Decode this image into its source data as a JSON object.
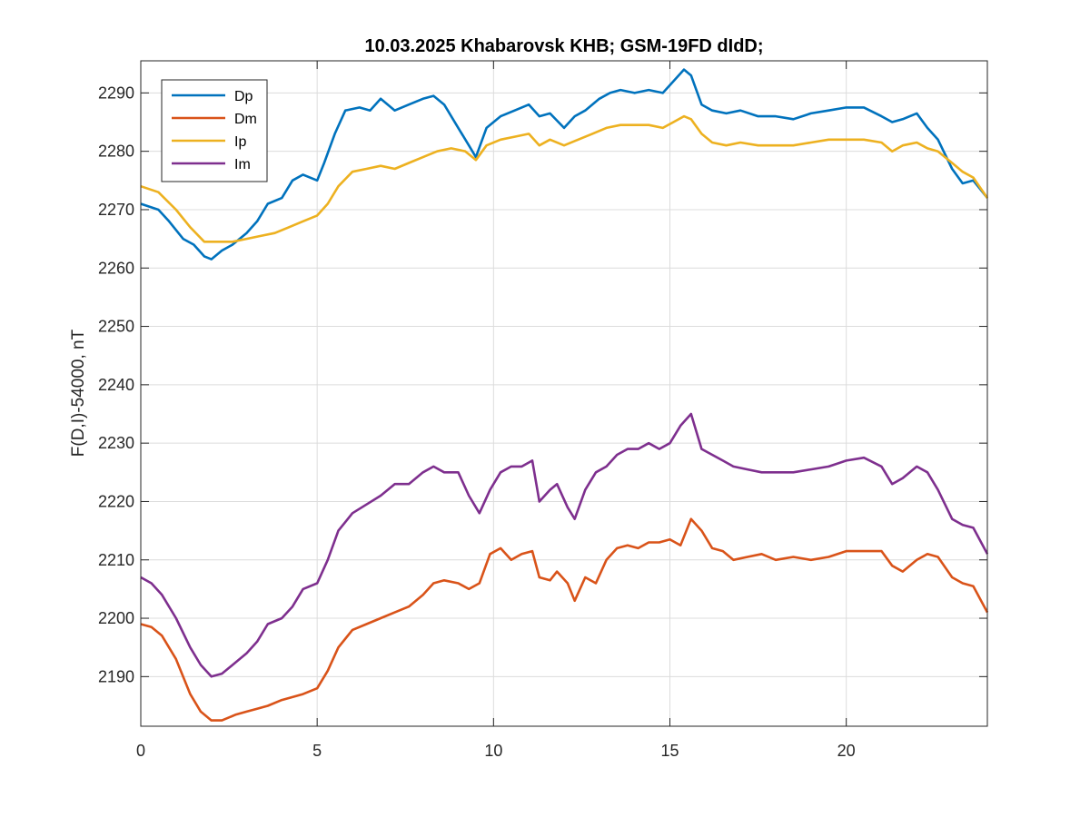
{
  "chart_data": {
    "type": "line",
    "title": "10.03.2025  Khabarovsk KHB; GSM-19FD dIdD;",
    "xlabel": "",
    "ylabel": "F(D,I)-54000, nT",
    "xlim": [
      0,
      24
    ],
    "ylim": [
      2181.5,
      2295.5
    ],
    "x_ticks": [
      0,
      5,
      10,
      15,
      20
    ],
    "y_ticks": [
      2190,
      2200,
      2210,
      2220,
      2230,
      2240,
      2250,
      2260,
      2270,
      2280,
      2290
    ],
    "grid": true,
    "legend_position": "top-left",
    "series": [
      {
        "name": "Dp",
        "color": "#0072BD",
        "x": [
          0,
          0.5,
          0.8,
          1.2,
          1.5,
          1.8,
          2.0,
          2.3,
          2.6,
          3.0,
          3.3,
          3.6,
          4.0,
          4.3,
          4.6,
          5.0,
          5.2,
          5.5,
          5.8,
          6.2,
          6.5,
          6.8,
          7.2,
          7.6,
          8.0,
          8.3,
          8.6,
          9.0,
          9.3,
          9.5,
          9.8,
          10.2,
          10.6,
          11.0,
          11.3,
          11.6,
          12.0,
          12.3,
          12.6,
          13.0,
          13.3,
          13.6,
          14.0,
          14.4,
          14.8,
          15.1,
          15.4,
          15.6,
          15.9,
          16.2,
          16.6,
          17.0,
          17.5,
          18.0,
          18.5,
          19.0,
          19.5,
          20.0,
          20.5,
          21.0,
          21.3,
          21.6,
          22.0,
          22.3,
          22.6,
          23.0,
          23.3,
          23.6,
          24.0
        ],
        "values": [
          2271,
          2270,
          2268,
          2265,
          2264,
          2262,
          2261.5,
          2263,
          2264,
          2266,
          2268,
          2271,
          2272,
          2275,
          2276,
          2275,
          2278,
          2283,
          2287,
          2287.5,
          2287,
          2289,
          2287,
          2288,
          2289,
          2289.5,
          2288,
          2284,
          2281,
          2279,
          2284,
          2286,
          2287,
          2288,
          2286,
          2286.5,
          2284,
          2286,
          2287,
          2289,
          2290,
          2290.5,
          2290,
          2290.5,
          2290,
          2292,
          2294,
          2293,
          2288,
          2287,
          2286.5,
          2287,
          2286,
          2286,
          2285.5,
          2286.5,
          2287,
          2287.5,
          2287.5,
          2286,
          2285,
          2285.5,
          2286.5,
          2284,
          2282,
          2277,
          2274.5,
          2275,
          2272
        ]
      },
      {
        "name": "Dm",
        "color": "#D95319",
        "x": [
          0,
          0.3,
          0.6,
          1.0,
          1.4,
          1.7,
          2.0,
          2.3,
          2.7,
          3.0,
          3.3,
          3.6,
          4.0,
          4.3,
          4.6,
          5.0,
          5.3,
          5.6,
          6.0,
          6.4,
          6.8,
          7.2,
          7.6,
          8.0,
          8.3,
          8.6,
          9.0,
          9.3,
          9.6,
          9.9,
          10.2,
          10.5,
          10.8,
          11.1,
          11.3,
          11.6,
          11.8,
          12.1,
          12.3,
          12.6,
          12.9,
          13.2,
          13.5,
          13.8,
          14.1,
          14.4,
          14.7,
          15.0,
          15.3,
          15.6,
          15.9,
          16.2,
          16.5,
          16.8,
          17.2,
          17.6,
          18.0,
          18.5,
          19.0,
          19.5,
          20.0,
          20.5,
          21.0,
          21.3,
          21.6,
          22.0,
          22.3,
          22.6,
          23.0,
          23.3,
          23.6,
          24.0
        ],
        "values": [
          2199,
          2198.5,
          2197,
          2193,
          2187,
          2184,
          2182.5,
          2182.5,
          2183.5,
          2184,
          2184.5,
          2185,
          2186,
          2186.5,
          2187,
          2188,
          2191,
          2195,
          2198,
          2199,
          2200,
          2201,
          2202,
          2204,
          2206,
          2206.5,
          2206,
          2205,
          2206,
          2211,
          2212,
          2210,
          2211,
          2211.5,
          2207,
          2206.5,
          2208,
          2206,
          2203,
          2207,
          2206,
          2210,
          2212,
          2212.5,
          2212,
          2213,
          2213,
          2213.5,
          2212.5,
          2217,
          2215,
          2212,
          2211.5,
          2210,
          2210.5,
          2211,
          2210,
          2210.5,
          2210,
          2210.5,
          2211.5,
          2211.5,
          2211.5,
          2209,
          2208,
          2210,
          2211,
          2210.5,
          2207,
          2206,
          2205.5,
          2201
        ]
      },
      {
        "name": "Ip",
        "color": "#EDB120",
        "x": [
          0,
          0.5,
          1.0,
          1.4,
          1.8,
          2.2,
          2.6,
          3.0,
          3.4,
          3.8,
          4.2,
          4.6,
          5.0,
          5.3,
          5.6,
          6.0,
          6.4,
          6.8,
          7.2,
          7.6,
          8.0,
          8.4,
          8.8,
          9.2,
          9.5,
          9.8,
          10.2,
          10.6,
          11.0,
          11.3,
          11.6,
          12.0,
          12.4,
          12.8,
          13.2,
          13.6,
          14.0,
          14.4,
          14.8,
          15.1,
          15.4,
          15.6,
          15.9,
          16.2,
          16.6,
          17.0,
          17.5,
          18.0,
          18.5,
          19.0,
          19.5,
          20.0,
          20.5,
          21.0,
          21.3,
          21.6,
          22.0,
          22.3,
          22.6,
          23.0,
          23.3,
          23.6,
          24.0
        ],
        "values": [
          2274,
          2273,
          2270,
          2267,
          2264.5,
          2264.5,
          2264.5,
          2265,
          2265.5,
          2266,
          2267,
          2268,
          2269,
          2271,
          2274,
          2276.5,
          2277,
          2277.5,
          2277,
          2278,
          2279,
          2280,
          2280.5,
          2280,
          2278.5,
          2281,
          2282,
          2282.5,
          2283,
          2281,
          2282,
          2281,
          2282,
          2283,
          2284,
          2284.5,
          2284.5,
          2284.5,
          2284,
          2285,
          2286,
          2285.5,
          2283,
          2281.5,
          2281,
          2281.5,
          2281,
          2281,
          2281,
          2281.5,
          2282,
          2282,
          2282,
          2281.5,
          2280,
          2281,
          2281.5,
          2280.5,
          2280,
          2278,
          2276.5,
          2275.5,
          2272
        ]
      },
      {
        "name": "Im",
        "color": "#7E2F8E",
        "x": [
          0,
          0.3,
          0.6,
          1.0,
          1.4,
          1.7,
          2.0,
          2.3,
          2.7,
          3.0,
          3.3,
          3.6,
          4.0,
          4.3,
          4.6,
          5.0,
          5.3,
          5.6,
          6.0,
          6.4,
          6.8,
          7.2,
          7.6,
          8.0,
          8.3,
          8.6,
          9.0,
          9.3,
          9.6,
          9.9,
          10.2,
          10.5,
          10.8,
          11.1,
          11.3,
          11.6,
          11.8,
          12.1,
          12.3,
          12.6,
          12.9,
          13.2,
          13.5,
          13.8,
          14.1,
          14.4,
          14.7,
          15.0,
          15.3,
          15.6,
          15.9,
          16.2,
          16.5,
          16.8,
          17.2,
          17.6,
          18.0,
          18.5,
          19.0,
          19.5,
          20.0,
          20.5,
          21.0,
          21.3,
          21.6,
          22.0,
          22.3,
          22.6,
          23.0,
          23.3,
          23.6,
          24.0
        ],
        "values": [
          2207,
          2206,
          2204,
          2200,
          2195,
          2192,
          2190,
          2190.5,
          2192.5,
          2194,
          2196,
          2199,
          2200,
          2202,
          2205,
          2206,
          2210,
          2215,
          2218,
          2219.5,
          2221,
          2223,
          2223,
          2225,
          2226,
          2225,
          2225,
          2221,
          2218,
          2222,
          2225,
          2226,
          2226,
          2227,
          2220,
          2222,
          2223,
          2219,
          2217,
          2222,
          2225,
          2226,
          2228,
          2229,
          2229,
          2230,
          2229,
          2230,
          2233,
          2235,
          2229,
          2228,
          2227,
          2226,
          2225.5,
          2225,
          2225,
          2225,
          2225.5,
          2226,
          2227,
          2227.5,
          2226,
          2223,
          2224,
          2226,
          2225,
          2222,
          2217,
          2216,
          2215.5,
          2211
        ]
      }
    ]
  }
}
